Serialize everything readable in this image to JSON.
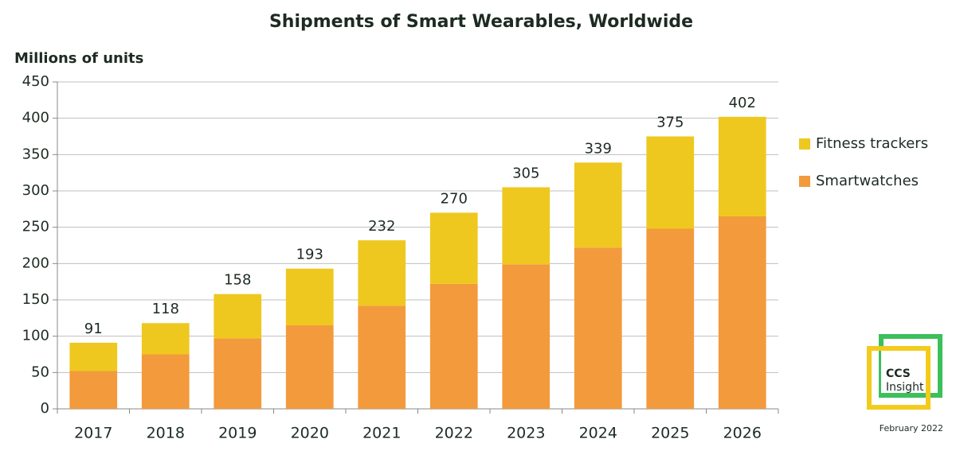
{
  "chart_data": {
    "type": "stacked-bar",
    "title": "Shipments of Smart Wearables, Worldwide",
    "y_label": "Millions of units",
    "categories": [
      "2017",
      "2018",
      "2019",
      "2020",
      "2021",
      "2022",
      "2023",
      "2024",
      "2025",
      "2026"
    ],
    "series": [
      {
        "name": "Smartwatches",
        "color": "#f39a3c",
        "values": [
          52,
          75,
          97,
          115,
          142,
          172,
          199,
          222,
          248,
          265
        ]
      },
      {
        "name": "Fitness trackers",
        "color": "#eec81f",
        "values": [
          39,
          43,
          61,
          78,
          90,
          98,
          106,
          117,
          127,
          137
        ]
      }
    ],
    "totals": [
      91,
      118,
      158,
      193,
      232,
      270,
      305,
      339,
      375,
      402
    ],
    "ylim": [
      0,
      450
    ],
    "yticks": [
      0,
      50,
      100,
      150,
      200,
      250,
      300,
      350,
      400,
      450
    ],
    "grid": true,
    "legend": "right",
    "logo_lines": [
      "CCS",
      "Insight"
    ],
    "note": "February 2022"
  }
}
